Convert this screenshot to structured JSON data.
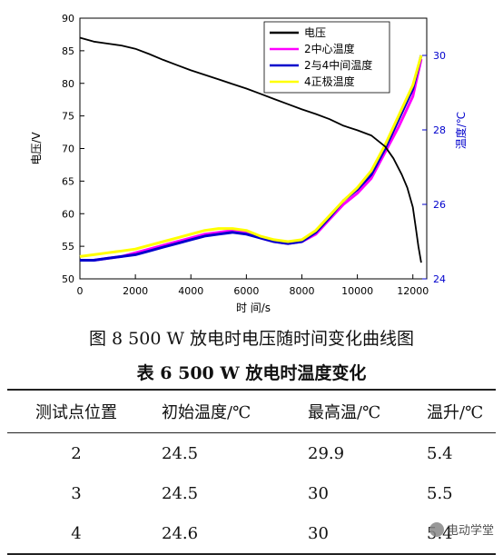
{
  "chart_data": {
    "type": "line",
    "xlabel": "时 间/s",
    "ylabel_left": "电压/V",
    "ylabel_right": "温度/℃",
    "xlim": [
      0,
      12500
    ],
    "ylim_left": [
      50,
      90
    ],
    "ylim_right": [
      24,
      31
    ],
    "x_ticks": [
      0,
      2000,
      4000,
      6000,
      8000,
      10000,
      12000
    ],
    "y_left_ticks": [
      50,
      55,
      60,
      65,
      70,
      75,
      80,
      85,
      90
    ],
    "y_right_ticks": [
      24,
      26,
      28,
      30
    ],
    "legend_position": "top-right",
    "series": [
      {
        "name": "电压",
        "axis": "left",
        "color": "#000000",
        "x": [
          0,
          500,
          1000,
          1500,
          2000,
          2500,
          3000,
          3500,
          4000,
          4500,
          5000,
          5500,
          6000,
          6500,
          7000,
          7500,
          8000,
          8500,
          9000,
          9500,
          10000,
          10500,
          11000,
          11300,
          11600,
          11800,
          12000,
          12100,
          12200,
          12300
        ],
        "y": [
          87,
          86.4,
          86.1,
          85.8,
          85.3,
          84.5,
          83.6,
          82.8,
          82.0,
          81.3,
          80.6,
          79.9,
          79.2,
          78.4,
          77.6,
          76.8,
          76.0,
          75.3,
          74.5,
          73.5,
          72.8,
          72.0,
          70.3,
          68.5,
          66.0,
          64.0,
          61.0,
          58.0,
          55.0,
          52.5
        ]
      },
      {
        "name": "2中心温度",
        "axis": "right",
        "color": "#ff00ff",
        "x": [
          0,
          500,
          1000,
          1500,
          2000,
          2500,
          3000,
          3500,
          4000,
          4500,
          5000,
          5500,
          6000,
          6500,
          7000,
          7500,
          8000,
          8500,
          9000,
          9500,
          10000,
          10500,
          11000,
          11500,
          12000,
          12300
        ],
        "y": [
          24.5,
          24.5,
          24.55,
          24.6,
          24.7,
          24.8,
          24.9,
          25.0,
          25.1,
          25.2,
          25.25,
          25.3,
          25.25,
          25.1,
          25.0,
          24.95,
          25.0,
          25.2,
          25.6,
          26.0,
          26.3,
          26.7,
          27.4,
          28.1,
          28.9,
          29.9
        ]
      },
      {
        "name": "2与4中间温度",
        "axis": "right",
        "color": "#0000cc",
        "x": [
          0,
          500,
          1000,
          1500,
          2000,
          2500,
          3000,
          3500,
          4000,
          4500,
          5000,
          5500,
          6000,
          6500,
          7000,
          7500,
          8000,
          8500,
          9000,
          9500,
          10000,
          10500,
          11000,
          11500,
          12000,
          12300
        ],
        "y": [
          24.5,
          24.5,
          24.55,
          24.6,
          24.65,
          24.75,
          24.85,
          24.95,
          25.05,
          25.15,
          25.2,
          25.25,
          25.2,
          25.1,
          25.0,
          24.95,
          25.0,
          25.25,
          25.65,
          26.1,
          26.4,
          26.8,
          27.5,
          28.3,
          29.1,
          30.0
        ]
      },
      {
        "name": "4正极温度",
        "axis": "right",
        "color": "#ffff00",
        "x": [
          0,
          500,
          1000,
          1500,
          2000,
          2500,
          3000,
          3500,
          4000,
          4500,
          5000,
          5500,
          6000,
          6500,
          7000,
          7500,
          8000,
          8500,
          9000,
          9500,
          10000,
          10500,
          11000,
          11500,
          12000,
          12300
        ],
        "y": [
          24.6,
          24.65,
          24.7,
          24.75,
          24.8,
          24.9,
          25.0,
          25.1,
          25.2,
          25.3,
          25.35,
          25.35,
          25.3,
          25.15,
          25.05,
          25.0,
          25.05,
          25.3,
          25.7,
          26.1,
          26.45,
          26.9,
          27.6,
          28.4,
          29.2,
          30.0
        ]
      }
    ]
  },
  "figure_caption": "图  8 500 W 放电时电压随时间变化曲线图",
  "table": {
    "title": "表  6    500 W 放电时温度变化",
    "headers": [
      "测试点位置",
      "初始温度/℃",
      "最高温/℃",
      "温升/℃"
    ],
    "rows": [
      [
        "2",
        "24.5",
        "29.9",
        "5.4"
      ],
      [
        "3",
        "24.5",
        "30",
        "5.5"
      ],
      [
        "4",
        "24.6",
        "30",
        "5.4"
      ]
    ]
  },
  "watermark": "电动学堂"
}
